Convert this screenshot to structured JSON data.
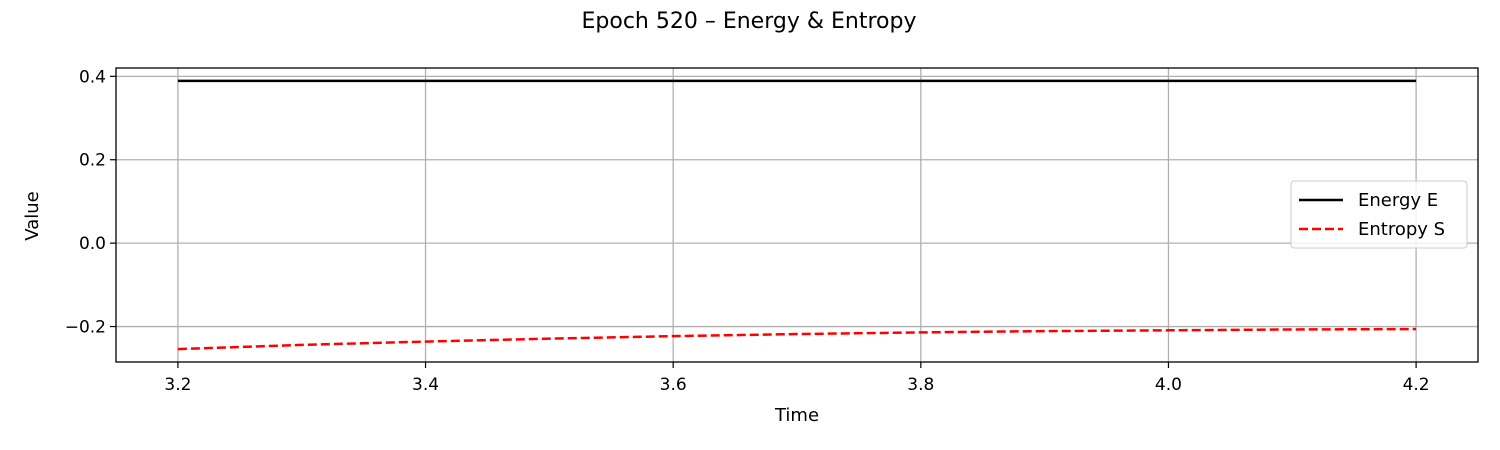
{
  "chart_data": {
    "type": "line",
    "title": "Epoch 520 – Energy & Entropy",
    "xlabel": "Time",
    "ylabel": "Value",
    "xlim": [
      3.15,
      4.25
    ],
    "ylim": [
      -0.285,
      0.42
    ],
    "x_ticks": [
      3.2,
      3.4,
      3.6,
      3.8,
      4.0,
      4.2
    ],
    "x_tick_labels": [
      "3.2",
      "3.4",
      "3.6",
      "3.8",
      "4.0",
      "4.2"
    ],
    "y_ticks": [
      -0.2,
      0.0,
      0.2,
      0.4
    ],
    "y_tick_labels": [
      "−0.2",
      "0.0",
      "0.2",
      "0.4"
    ],
    "grid": true,
    "legend_position": "right",
    "x": [
      3.2,
      3.3,
      3.4,
      3.5,
      3.6,
      3.7,
      3.8,
      3.9,
      4.0,
      4.1,
      4.2
    ],
    "series": [
      {
        "name": "Energy E",
        "color": "#000000",
        "style": "solid",
        "values": [
          0.389,
          0.389,
          0.389,
          0.389,
          0.389,
          0.389,
          0.389,
          0.389,
          0.389,
          0.389,
          0.389
        ]
      },
      {
        "name": "Entropy S",
        "color": "#ff0000",
        "style": "dashed",
        "values": [
          -0.254,
          -0.244,
          -0.236,
          -0.229,
          -0.223,
          -0.218,
          -0.214,
          -0.211,
          -0.209,
          -0.207,
          -0.206
        ]
      }
    ]
  }
}
